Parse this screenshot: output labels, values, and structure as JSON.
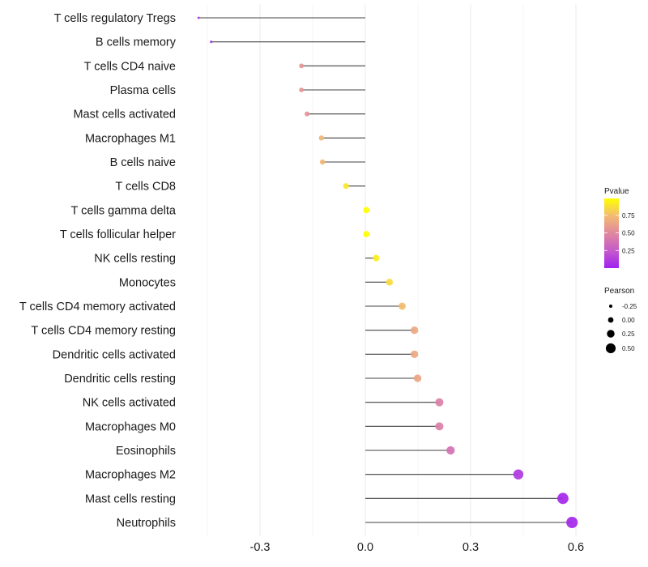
{
  "chart_data": {
    "type": "lollipop",
    "title": "",
    "xlabel": "",
    "ylabel": "",
    "xlim": [
      -0.5,
      0.62
    ],
    "x_ticks": [
      -0.3,
      0.0,
      0.3,
      0.6
    ],
    "x_tick_labels": [
      "-0.3",
      "0.0",
      "0.3",
      "0.6"
    ],
    "grid": true,
    "categories": [
      "T cells regulatory  Tregs",
      "B cells memory",
      "T cells CD4 naive",
      "Plasma cells",
      "Mast cells activated",
      "Macrophages M1",
      "B cells naive",
      "T cells CD8",
      "T cells gamma delta",
      "T cells follicular helper",
      "NK cells resting",
      "Monocytes",
      "T cells CD4 memory activated",
      "T cells CD4 memory resting",
      "Dendritic cells activated",
      "Dendritic cells resting",
      "NK cells activated",
      "Macrophages M0",
      "Eosinophils",
      "Macrophages M2",
      "Mast cells resting",
      "Neutrophils"
    ],
    "pearson": [
      -0.475,
      -0.439,
      -0.182,
      -0.182,
      -0.166,
      -0.125,
      -0.122,
      -0.055,
      0.003,
      0.003,
      0.031,
      0.069,
      0.105,
      0.14,
      0.14,
      0.149,
      0.211,
      0.211,
      0.243,
      0.436,
      0.563,
      0.589
    ],
    "pvalue": [
      0.01,
      0.02,
      0.56,
      0.56,
      0.55,
      0.72,
      0.72,
      0.9,
      0.99,
      0.99,
      0.93,
      0.86,
      0.75,
      0.65,
      0.65,
      0.64,
      0.45,
      0.45,
      0.38,
      0.1,
      0.03,
      0.03
    ],
    "legend": {
      "color": {
        "title": "Pvalue",
        "ticks": [
          "0.75",
          "0.50",
          "0.25"
        ],
        "tick_values": [
          0.75,
          0.5,
          0.25
        ],
        "range": [
          0.0,
          0.99
        ],
        "low_color": "#A020F0",
        "mid_color": "#E0879E",
        "high_color": "#FFFF00",
        "placement": "right"
      },
      "size": {
        "title": "Pearson",
        "labels": [
          "-0.25",
          "0.00",
          "0.25",
          "0.50"
        ],
        "values": [
          -0.25,
          0.0,
          0.25,
          0.5
        ],
        "placement": "right"
      }
    }
  }
}
